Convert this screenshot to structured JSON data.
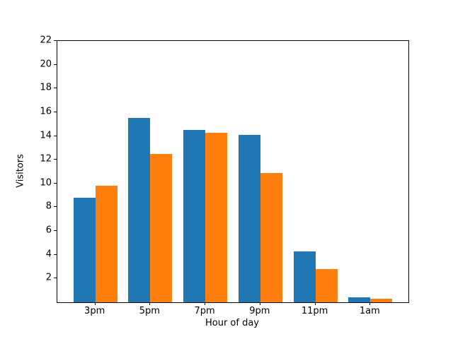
{
  "chart_data": {
    "type": "bar",
    "title": "",
    "xlabel": "Hour of day",
    "ylabel": "Visitors",
    "categories": [
      "3pm",
      "5pm",
      "7pm",
      "9pm",
      "11pm",
      "1am"
    ],
    "series": [
      {
        "name": "blue",
        "color": "#1f77b4",
        "values": [
          8.8,
          15.5,
          14.5,
          14.1,
          4.3,
          0.4
        ]
      },
      {
        "name": "orange",
        "color": "#ff7f0e",
        "values": [
          9.8,
          12.5,
          14.3,
          10.9,
          2.8,
          0.3
        ]
      }
    ],
    "ylim": [
      0,
      22
    ],
    "yticks": [
      2,
      4,
      6,
      8,
      10,
      12,
      14,
      16,
      18,
      20,
      22
    ],
    "xlim": [
      -0.69,
      5.69
    ],
    "bar_width": 0.4,
    "legend": "none",
    "grid": false,
    "colors": {
      "axis": "#000000",
      "background": "#ffffff"
    }
  }
}
